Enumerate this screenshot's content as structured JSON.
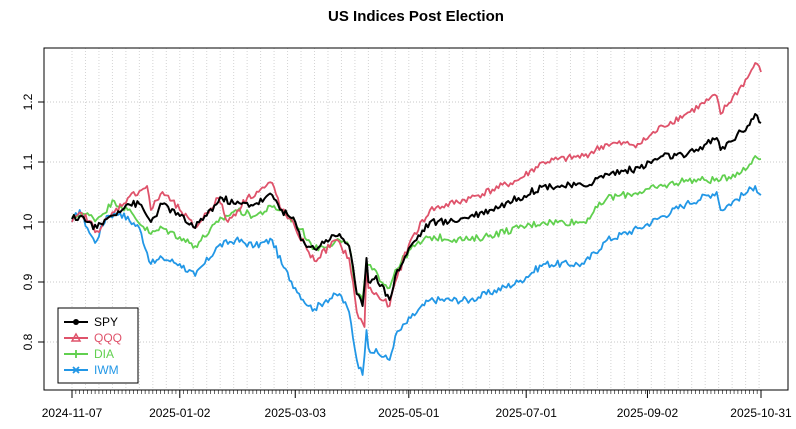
{
  "chart_data": {
    "type": "line",
    "title": "US Indices Post Election",
    "xlabel": "",
    "ylabel": "",
    "ylim": [
      0.72,
      1.29
    ],
    "y_ticks": [
      0.8,
      0.9,
      1.0,
      1.1,
      1.2
    ],
    "x_ticks": [
      "2024-11-07",
      "2025-01-02",
      "2025-03-03",
      "2025-05-01",
      "2025-07-01",
      "2025-09-02",
      "2025-10-31"
    ],
    "grid": true,
    "legend_position": "bottom-left",
    "series": [
      {
        "name": "SPY",
        "color": "#000000",
        "marker": "circle",
        "anchors": [
          [
            "2024-11-07",
            1.005
          ],
          [
            "2024-11-12",
            1.01
          ],
          [
            "2024-11-15",
            1.0
          ],
          [
            "2024-11-20",
            0.99
          ],
          [
            "2024-11-27",
            1.01
          ],
          [
            "2024-12-06",
            1.03
          ],
          [
            "2024-12-12",
            1.03
          ],
          [
            "2024-12-18",
            1.0
          ],
          [
            "2024-12-24",
            1.03
          ],
          [
            "2025-01-02",
            1.01
          ],
          [
            "2025-01-10",
            0.99
          ],
          [
            "2025-01-15",
            1.01
          ],
          [
            "2025-01-24",
            1.04
          ],
          [
            "2025-01-31",
            1.03
          ],
          [
            "2025-02-10",
            1.03
          ],
          [
            "2025-02-19",
            1.045
          ],
          [
            "2025-02-24",
            1.02
          ],
          [
            "2025-03-03",
            1.0
          ],
          [
            "2025-03-06",
            0.97
          ],
          [
            "2025-03-13",
            0.955
          ],
          [
            "2025-03-19",
            0.97
          ],
          [
            "2025-03-26",
            0.98
          ],
          [
            "2025-03-31",
            0.96
          ],
          [
            "2025-04-04",
            0.88
          ],
          [
            "2025-04-07",
            0.86
          ],
          [
            "2025-04-09",
            0.94
          ],
          [
            "2025-04-10",
            0.9
          ],
          [
            "2025-04-14",
            0.91
          ],
          [
            "2025-04-21",
            0.87
          ],
          [
            "2025-04-24",
            0.91
          ],
          [
            "2025-05-02",
            0.96
          ],
          [
            "2025-05-12",
            1.0
          ],
          [
            "2025-05-22",
            1.0
          ],
          [
            "2025-06-02",
            1.01
          ],
          [
            "2025-06-12",
            1.02
          ],
          [
            "2025-06-27",
            1.04
          ],
          [
            "2025-07-10",
            1.06
          ],
          [
            "2025-07-31",
            1.06
          ],
          [
            "2025-08-12",
            1.08
          ],
          [
            "2025-08-29",
            1.09
          ],
          [
            "2025-09-10",
            1.11
          ],
          [
            "2025-09-22",
            1.11
          ],
          [
            "2025-10-08",
            1.14
          ],
          [
            "2025-10-10",
            1.12
          ],
          [
            "2025-10-24",
            1.16
          ],
          [
            "2025-10-28",
            1.18
          ],
          [
            "2025-10-31",
            1.165
          ]
        ]
      },
      {
        "name": "QQQ",
        "color": "#DF536B",
        "marker": "triangle",
        "anchors": [
          [
            "2024-11-07",
            1.0
          ],
          [
            "2024-11-12",
            1.015
          ],
          [
            "2024-11-20",
            0.985
          ],
          [
            "2024-11-27",
            1.01
          ],
          [
            "2024-12-06",
            1.04
          ],
          [
            "2024-12-16",
            1.06
          ],
          [
            "2024-12-18",
            1.02
          ],
          [
            "2024-12-24",
            1.05
          ],
          [
            "2025-01-02",
            1.02
          ],
          [
            "2025-01-10",
            0.99
          ],
          [
            "2025-01-22",
            1.04
          ],
          [
            "2025-01-27",
            1.0
          ],
          [
            "2025-02-06",
            1.04
          ],
          [
            "2025-02-19",
            1.065
          ],
          [
            "2025-02-24",
            1.02
          ],
          [
            "2025-03-03",
            0.99
          ],
          [
            "2025-03-10",
            0.95
          ],
          [
            "2025-03-13",
            0.935
          ],
          [
            "2025-03-24",
            0.97
          ],
          [
            "2025-03-31",
            0.94
          ],
          [
            "2025-04-04",
            0.85
          ],
          [
            "2025-04-08",
            0.825
          ],
          [
            "2025-04-09",
            0.93
          ],
          [
            "2025-04-10",
            0.89
          ],
          [
            "2025-04-21",
            0.86
          ],
          [
            "2025-04-24",
            0.9
          ],
          [
            "2025-05-02",
            0.97
          ],
          [
            "2025-05-12",
            1.02
          ],
          [
            "2025-06-02",
            1.04
          ],
          [
            "2025-06-27",
            1.07
          ],
          [
            "2025-07-10",
            1.1
          ],
          [
            "2025-07-31",
            1.11
          ],
          [
            "2025-08-12",
            1.13
          ],
          [
            "2025-08-29",
            1.13
          ],
          [
            "2025-09-10",
            1.16
          ],
          [
            "2025-09-22",
            1.18
          ],
          [
            "2025-10-08",
            1.21
          ],
          [
            "2025-10-10",
            1.18
          ],
          [
            "2025-10-24",
            1.24
          ],
          [
            "2025-10-28",
            1.265
          ],
          [
            "2025-10-31",
            1.25
          ]
        ]
      },
      {
        "name": "DIA",
        "color": "#61D04F",
        "marker": "cross",
        "anchors": [
          [
            "2024-11-07",
            1.005
          ],
          [
            "2024-11-12",
            1.015
          ],
          [
            "2024-11-20",
            1.005
          ],
          [
            "2024-11-29",
            1.035
          ],
          [
            "2024-12-06",
            1.02
          ],
          [
            "2024-12-18",
            0.98
          ],
          [
            "2024-12-24",
            0.99
          ],
          [
            "2025-01-02",
            0.975
          ],
          [
            "2025-01-10",
            0.96
          ],
          [
            "2025-01-22",
            1.0
          ],
          [
            "2025-01-31",
            1.02
          ],
          [
            "2025-02-10",
            1.01
          ],
          [
            "2025-02-19",
            1.025
          ],
          [
            "2025-02-24",
            1.02
          ],
          [
            "2025-03-03",
            1.0
          ],
          [
            "2025-03-10",
            0.97
          ],
          [
            "2025-03-13",
            0.955
          ],
          [
            "2025-03-26",
            0.97
          ],
          [
            "2025-03-31",
            0.96
          ],
          [
            "2025-04-04",
            0.88
          ],
          [
            "2025-04-07",
            0.87
          ],
          [
            "2025-04-09",
            0.93
          ],
          [
            "2025-04-21",
            0.89
          ],
          [
            "2025-04-24",
            0.92
          ],
          [
            "2025-05-02",
            0.955
          ],
          [
            "2025-05-12",
            0.975
          ],
          [
            "2025-06-02",
            0.97
          ],
          [
            "2025-06-27",
            0.99
          ],
          [
            "2025-07-10",
            1.0
          ],
          [
            "2025-07-31",
            1.0
          ],
          [
            "2025-08-12",
            1.04
          ],
          [
            "2025-08-29",
            1.05
          ],
          [
            "2025-09-10",
            1.06
          ],
          [
            "2025-09-22",
            1.07
          ],
          [
            "2025-10-10",
            1.07
          ],
          [
            "2025-10-24",
            1.09
          ],
          [
            "2025-10-28",
            1.11
          ],
          [
            "2025-10-31",
            1.105
          ]
        ]
      },
      {
        "name": "IWM",
        "color": "#2297E6",
        "marker": "x",
        "anchors": [
          [
            "2024-11-07",
            1.0
          ],
          [
            "2024-11-11",
            1.02
          ],
          [
            "2024-11-15",
            0.99
          ],
          [
            "2024-11-19",
            0.965
          ],
          [
            "2024-11-25",
            1.01
          ],
          [
            "2024-12-02",
            1.015
          ],
          [
            "2024-12-12",
            0.99
          ],
          [
            "2024-12-18",
            0.93
          ],
          [
            "2024-12-24",
            0.94
          ],
          [
            "2025-01-02",
            0.93
          ],
          [
            "2025-01-10",
            0.91
          ],
          [
            "2025-01-22",
            0.96
          ],
          [
            "2025-01-31",
            0.97
          ],
          [
            "2025-02-10",
            0.96
          ],
          [
            "2025-02-19",
            0.97
          ],
          [
            "2025-02-24",
            0.93
          ],
          [
            "2025-03-03",
            0.89
          ],
          [
            "2025-03-10",
            0.86
          ],
          [
            "2025-03-13",
            0.855
          ],
          [
            "2025-03-19",
            0.87
          ],
          [
            "2025-03-26",
            0.88
          ],
          [
            "2025-03-31",
            0.85
          ],
          [
            "2025-04-04",
            0.77
          ],
          [
            "2025-04-07",
            0.745
          ],
          [
            "2025-04-09",
            0.82
          ],
          [
            "2025-04-10",
            0.79
          ],
          [
            "2025-04-21",
            0.77
          ],
          [
            "2025-04-24",
            0.81
          ],
          [
            "2025-05-02",
            0.84
          ],
          [
            "2025-05-12",
            0.87
          ],
          [
            "2025-06-02",
            0.87
          ],
          [
            "2025-06-27",
            0.9
          ],
          [
            "2025-07-10",
            0.93
          ],
          [
            "2025-07-31",
            0.93
          ],
          [
            "2025-08-12",
            0.97
          ],
          [
            "2025-08-29",
            0.99
          ],
          [
            "2025-09-10",
            1.01
          ],
          [
            "2025-09-22",
            1.03
          ],
          [
            "2025-10-08",
            1.05
          ],
          [
            "2025-10-10",
            1.02
          ],
          [
            "2025-10-24",
            1.05
          ],
          [
            "2025-10-28",
            1.06
          ],
          [
            "2025-10-31",
            1.045
          ]
        ]
      }
    ]
  }
}
